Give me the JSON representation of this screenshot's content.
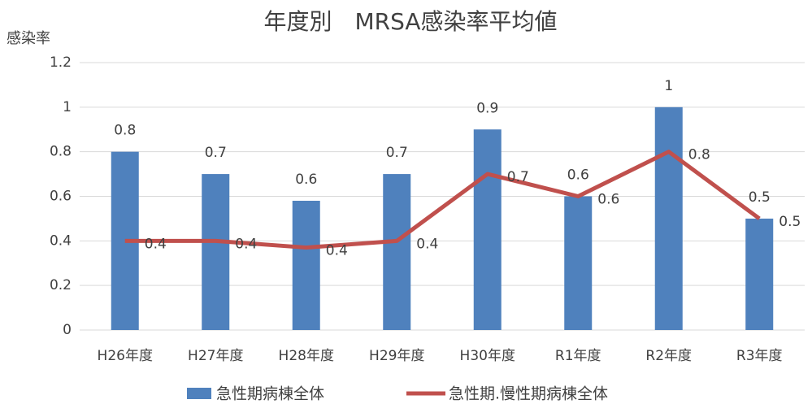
{
  "chart_data": {
    "type": "bar",
    "title": "年度別　MRSA感染率平均値",
    "y_label": "感染率",
    "categories": [
      "H26年度",
      "H27年度",
      "H28年度",
      "H29年度",
      "H30年度",
      "R1年度",
      "R2年度",
      "R3年度"
    ],
    "series": [
      {
        "name": "急性期病棟全体",
        "type": "bar",
        "color": "#4f81bd",
        "values": [
          0.8,
          0.7,
          0.58,
          0.7,
          0.9,
          0.6,
          1,
          0.5
        ],
        "value_labels": [
          "0.8",
          "0.7",
          "0.6",
          "0.7",
          "0.9",
          "0.6",
          "1",
          "0.5"
        ]
      },
      {
        "name": "急性期.慢性期病棟全体",
        "type": "line",
        "color": "#c0504d",
        "values": [
          0.4,
          0.4,
          0.37,
          0.4,
          0.7,
          0.6,
          0.8,
          0.5
        ],
        "value_labels": [
          "0.4",
          "0.4",
          "0.4",
          "0.4",
          "0.7",
          "0.6",
          "0.8",
          "0.5"
        ]
      }
    ],
    "ylim": [
      0,
      1.2
    ],
    "yticks": [
      0,
      0.2,
      0.4,
      0.6,
      0.8,
      1,
      1.2
    ],
    "grid": true,
    "legend": "bottom"
  }
}
